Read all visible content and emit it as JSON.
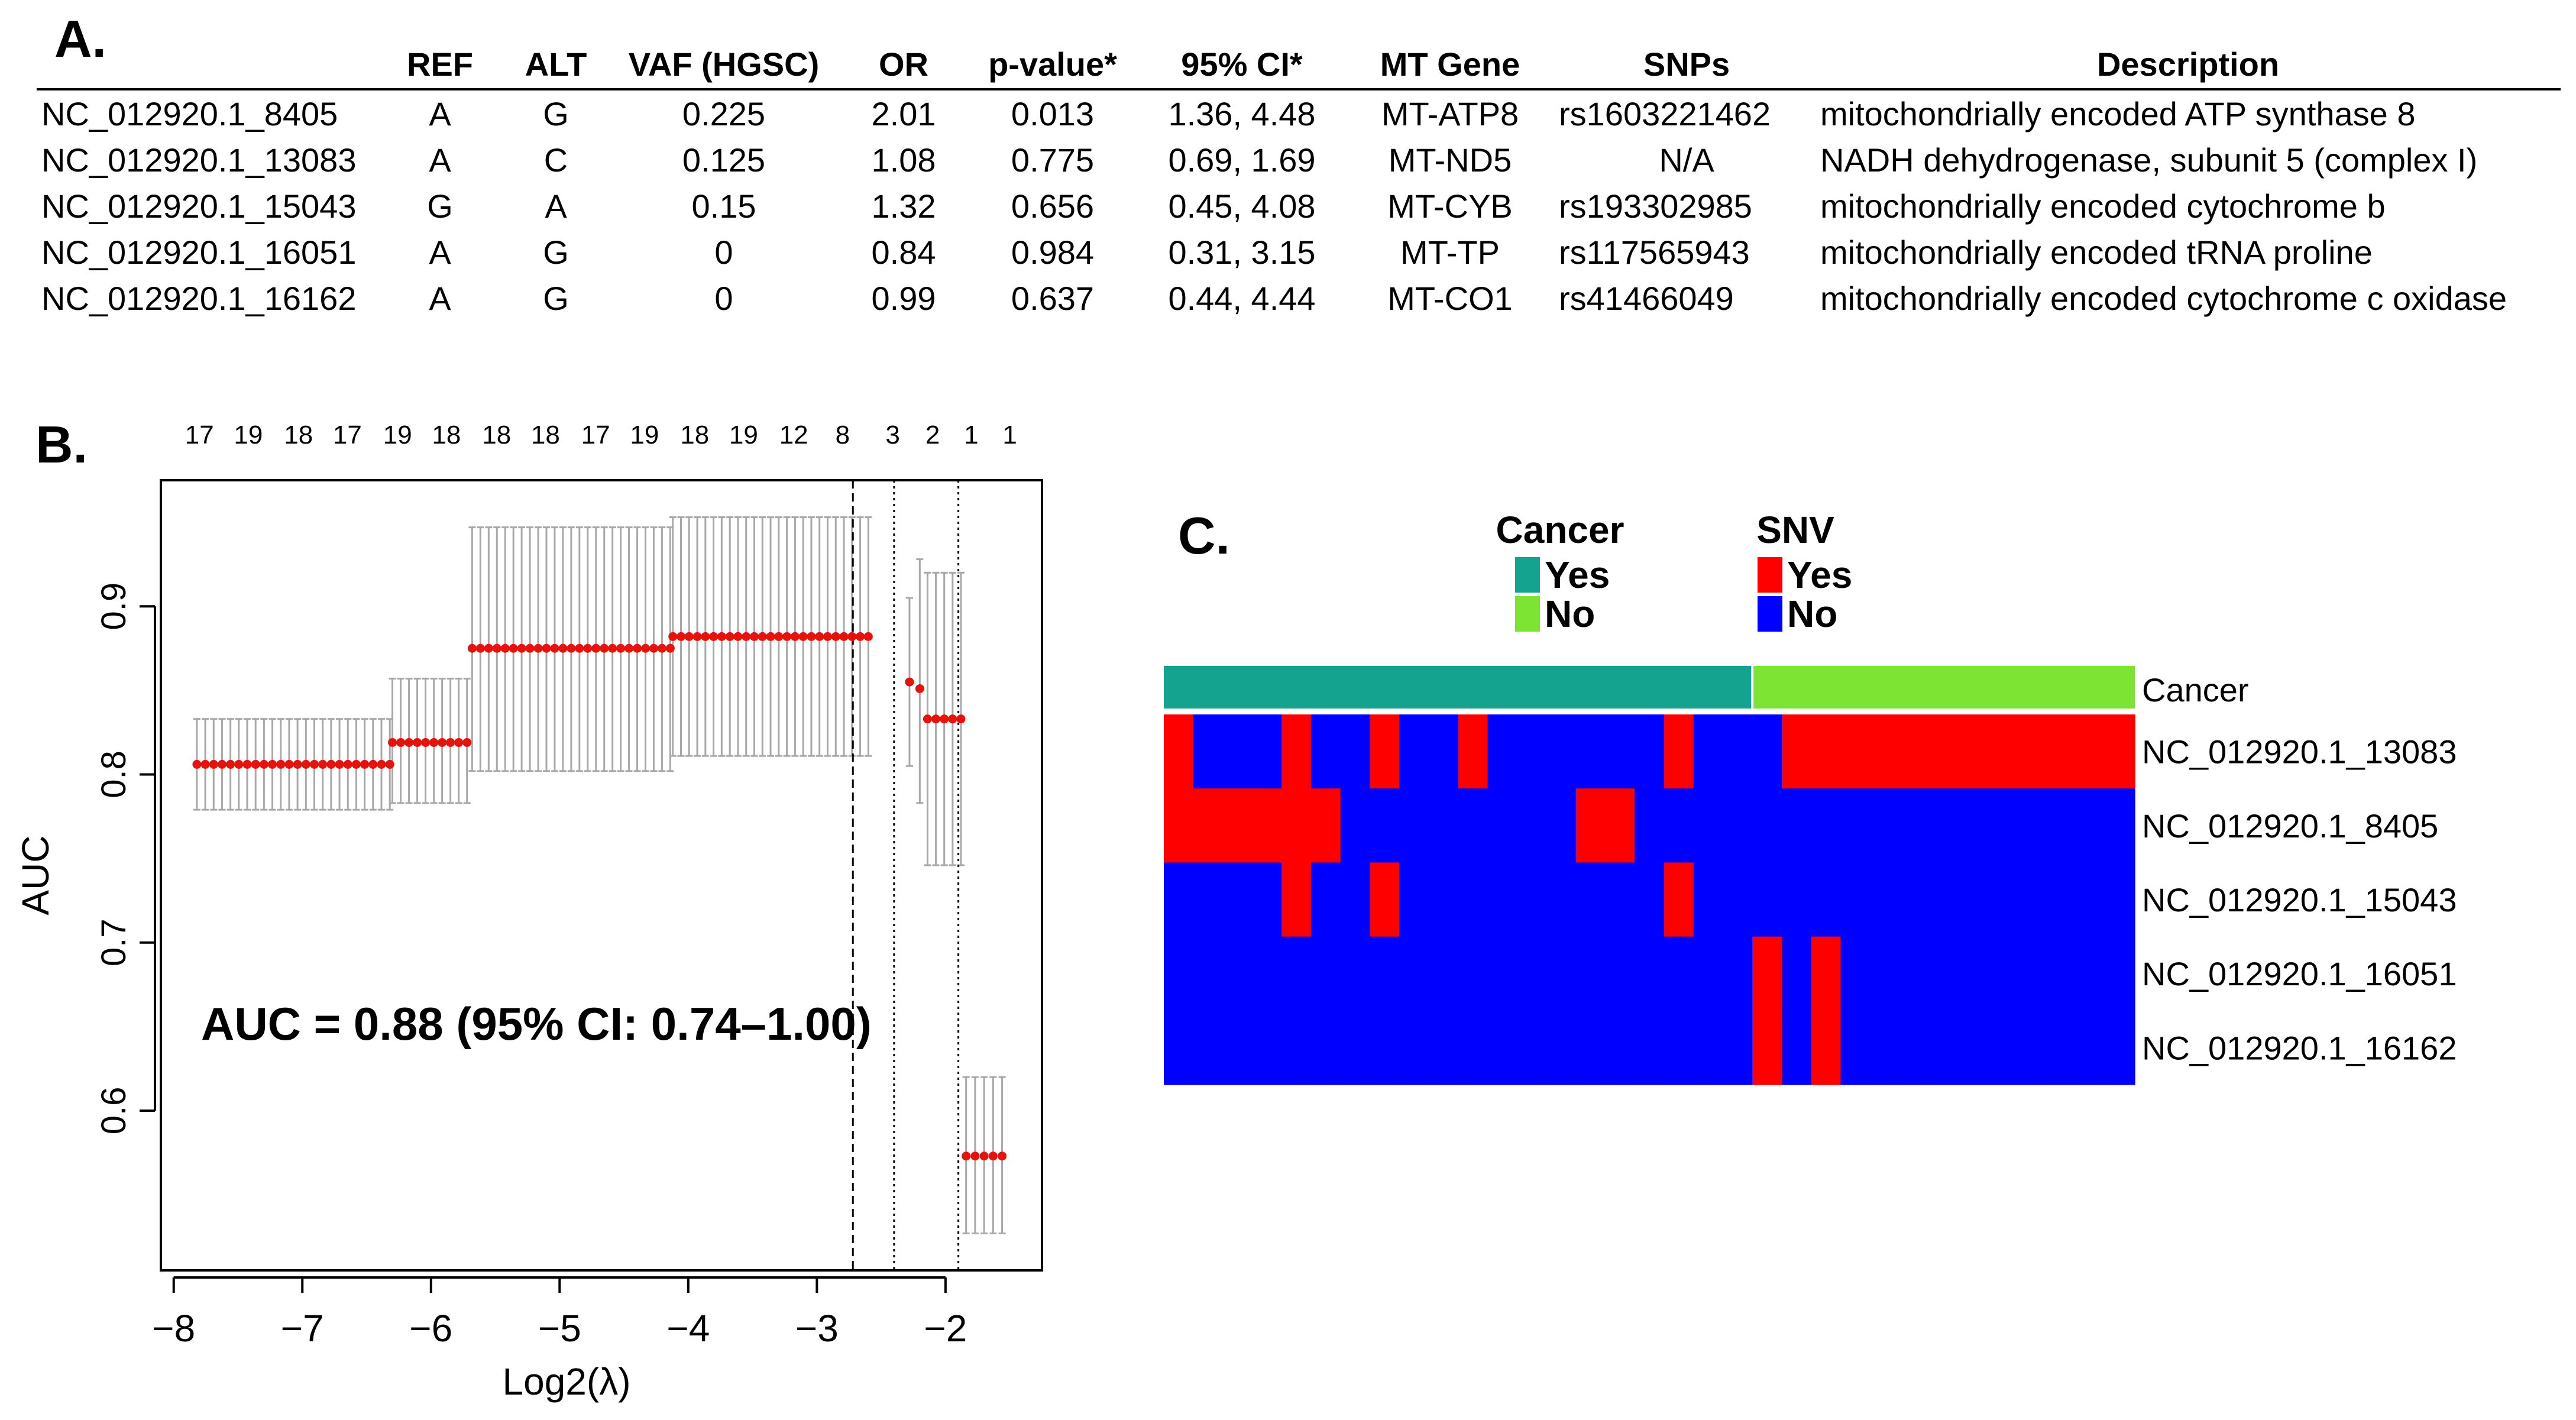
{
  "panel_a": {
    "label": "A.",
    "table": {
      "columns": [
        "",
        "REF",
        "ALT",
        "VAF (HGSC)",
        "OR",
        "p-value*",
        "95% CI*",
        "MT Gene",
        "SNPs",
        "Description"
      ],
      "rows": [
        [
          "NC_012920.1_8405",
          "A",
          "G",
          "0.225",
          "2.01",
          "0.013",
          "1.36, 4.48",
          "MT-ATP8",
          "rs1603221462",
          "mitochondrially encoded ATP synthase 8"
        ],
        [
          "NC_012920.1_13083",
          "A",
          "C",
          "0.125",
          "1.08",
          "0.775",
          "0.69, 1.69",
          "MT-ND5",
          "N/A",
          "NADH dehydrogenase, subunit 5 (complex I)"
        ],
        [
          "NC_012920.1_15043",
          "G",
          "A",
          "0.15",
          "1.32",
          "0.656",
          "0.45, 4.08",
          "MT-CYB",
          "rs193302985",
          "mitochondrially encoded cytochrome b"
        ],
        [
          "NC_012920.1_16051",
          "A",
          "G",
          "0",
          "0.84",
          "0.984",
          "0.31, 3.15",
          "MT-TP",
          "rs117565943",
          "mitochondrially encoded tRNA proline"
        ],
        [
          "NC_012920.1_16162",
          "A",
          "G",
          "0",
          "0.99",
          "0.637",
          "0.44, 4.44",
          "MT-CO1",
          "rs41466049",
          "mitochondrially encoded cytochrome c oxidase"
        ]
      ]
    }
  },
  "panel_b": {
    "label": "B.",
    "annotation": "AUC = 0.88 (95%  CI: 0.74–1.00)"
  },
  "panel_c": {
    "label": "C.",
    "legend_cancer": {
      "title": "Cancer",
      "items": [
        {
          "label": "Yes",
          "color": "#13a38f"
        },
        {
          "label": "No",
          "color": "#7de434"
        }
      ]
    },
    "legend_snv": {
      "title": "SNV",
      "items": [
        {
          "label": "Yes",
          "color": "#ff0000"
        },
        {
          "label": "No",
          "color": "#0000ff"
        }
      ]
    },
    "annotation_row_label": "Cancer"
  },
  "colors": {
    "point": "#e8120c",
    "errorbar": "#a8a8a8",
    "axis": "#000000"
  },
  "chart_data": [
    {
      "type": "scatter",
      "title": "",
      "xlabel": "Log2(λ)",
      "ylabel": "AUC",
      "xlim": [
        -8.1,
        -1.25
      ],
      "ylim": [
        0.505,
        0.975
      ],
      "xticks": [
        -8,
        -7,
        -6,
        -5,
        -4,
        -3,
        -2
      ],
      "xtick_labels": [
        "−8",
        "−7",
        "−6",
        "−5",
        "−4",
        "−3",
        "−2"
      ],
      "yticks": [
        0.6,
        0.7,
        0.8,
        0.9
      ],
      "ytick_labels": [
        "0.6",
        "0.7",
        "0.8",
        "0.9"
      ],
      "top_axis_labels": [
        "17",
        "19",
        "18",
        "17",
        "19",
        "18",
        "18",
        "18",
        "17",
        "19",
        "18",
        "19",
        "12",
        "8",
        "3",
        "2",
        "1",
        "1"
      ],
      "top_axis_x": [
        -7.8,
        -7.42,
        -7.03,
        -6.65,
        -6.26,
        -5.88,
        -5.49,
        -5.11,
        -4.72,
        -4.34,
        -3.95,
        -3.57,
        -3.18,
        -2.8,
        -2.41,
        -2.1,
        -1.8,
        -1.5
      ],
      "vlines": [
        {
          "x": -2.72,
          "style": "dashed"
        },
        {
          "x": -2.4,
          "style": "dotted"
        },
        {
          "x": -1.9,
          "style": "dotted"
        }
      ],
      "segments": [
        {
          "x_start": -7.82,
          "x_end": -6.32,
          "n": 24,
          "auc": 0.806,
          "lower": 0.779,
          "upper": 0.833
        },
        {
          "x_start": -6.3,
          "x_end": -5.72,
          "n": 10,
          "auc": 0.819,
          "lower": 0.783,
          "upper": 0.857
        },
        {
          "x_start": -5.68,
          "x_end": -4.14,
          "n": 25,
          "auc": 0.875,
          "lower": 0.802,
          "upper": 0.947
        },
        {
          "x_start": -4.12,
          "x_end": -2.6,
          "n": 25,
          "auc": 0.882,
          "lower": 0.811,
          "upper": 0.953
        },
        {
          "x_start": -2.28,
          "x_end": -2.28,
          "n": 1,
          "auc": 0.855,
          "lower": 0.805,
          "upper": 0.905
        },
        {
          "x_start": -2.2,
          "x_end": -2.2,
          "n": 1,
          "auc": 0.851,
          "lower": 0.783,
          "upper": 0.928
        },
        {
          "x_start": -2.14,
          "x_end": -1.88,
          "n": 5,
          "auc": 0.833,
          "lower": 0.746,
          "upper": 0.92
        },
        {
          "x_start": -1.84,
          "x_end": -1.56,
          "n": 5,
          "auc": 0.573,
          "lower": 0.527,
          "upper": 0.62
        }
      ]
    },
    {
      "type": "heatmap",
      "title": "",
      "rows": [
        "NC_012920.1_13083",
        "NC_012920.1_8405",
        "NC_012920.1_15043",
        "NC_012920.1_16051",
        "NC_012920.1_16162"
      ],
      "n_columns": 33,
      "cancer_yes_columns": 20,
      "value_labels": {
        "1": "Yes",
        "0": "No"
      },
      "matrix": [
        [
          1,
          0,
          0,
          0,
          1,
          0,
          0,
          1,
          0,
          0,
          1,
          0,
          0,
          0,
          0,
          0,
          0,
          1,
          0,
          0,
          0,
          1,
          1,
          1,
          1,
          1,
          1,
          1,
          1,
          1,
          1,
          1,
          1
        ],
        [
          1,
          1,
          1,
          1,
          1,
          1,
          0,
          0,
          0,
          0,
          0,
          0,
          0,
          0,
          1,
          1,
          0,
          0,
          0,
          0,
          0,
          0,
          0,
          0,
          0,
          0,
          0,
          0,
          0,
          0,
          0,
          0,
          0
        ],
        [
          0,
          0,
          0,
          0,
          1,
          0,
          0,
          1,
          0,
          0,
          0,
          0,
          0,
          0,
          0,
          0,
          0,
          1,
          0,
          0,
          0,
          0,
          0,
          0,
          0,
          0,
          0,
          0,
          0,
          0,
          0,
          0,
          0
        ],
        [
          0,
          0,
          0,
          0,
          0,
          0,
          0,
          0,
          0,
          0,
          0,
          0,
          0,
          0,
          0,
          0,
          0,
          0,
          0,
          0,
          1,
          0,
          1,
          0,
          0,
          0,
          0,
          0,
          0,
          0,
          0,
          0,
          0
        ],
        [
          0,
          0,
          0,
          0,
          0,
          0,
          0,
          0,
          0,
          0,
          0,
          0,
          0,
          0,
          0,
          0,
          0,
          0,
          0,
          0,
          1,
          0,
          1,
          0,
          0,
          0,
          0,
          0,
          0,
          0,
          0,
          0,
          0
        ]
      ]
    }
  ]
}
